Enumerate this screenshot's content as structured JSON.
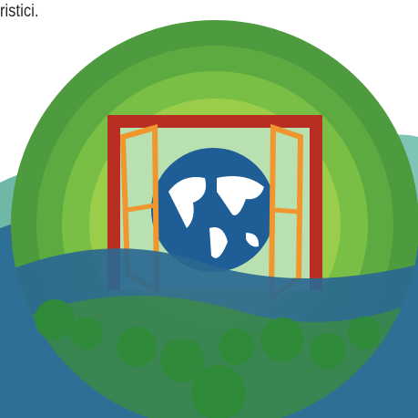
{
  "text": "ristici."
}
